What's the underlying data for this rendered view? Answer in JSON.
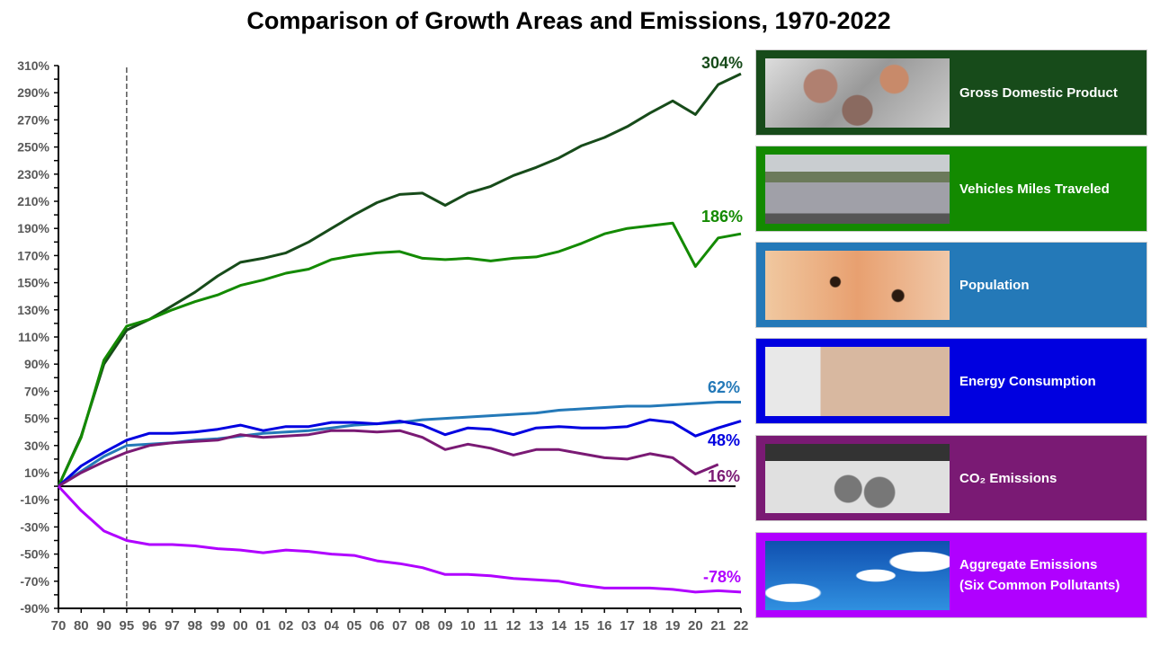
{
  "chart_data": {
    "type": "line",
    "title": "Comparison of Growth Areas and Emissions, 1970-2022",
    "categories": [
      "70",
      "80",
      "90",
      "95",
      "96",
      "97",
      "98",
      "99",
      "00",
      "01",
      "02",
      "03",
      "04",
      "05",
      "06",
      "07",
      "08",
      "09",
      "10",
      "11",
      "12",
      "13",
      "14",
      "15",
      "16",
      "17",
      "18",
      "19",
      "20",
      "21",
      "22"
    ],
    "ylim": [
      -90,
      310
    ],
    "yticks": [
      "310%",
      "290%",
      "270%",
      "250%",
      "230%",
      "210%",
      "190%",
      "170%",
      "150%",
      "130%",
      "110%",
      "90%",
      "70%",
      "50%",
      "30%",
      "10%",
      "-10%",
      "-30%",
      "-50%",
      "-70%",
      "-90%"
    ],
    "grid": false,
    "reference_line": "95",
    "series": [
      {
        "name": "Gross Domestic Product",
        "color": "#174b1a",
        "end_label": "304%",
        "values": [
          0,
          37,
          90,
          115,
          123,
          133,
          143,
          155,
          165,
          168,
          172,
          180,
          190,
          200,
          209,
          215,
          216,
          207,
          216,
          221,
          229,
          235,
          242,
          251,
          257,
          265,
          275,
          284,
          274,
          296,
          304
        ]
      },
      {
        "name": "Vehicles Miles Traveled",
        "color": "#138a00",
        "end_label": "186%",
        "values": [
          0,
          36,
          93,
          118,
          123,
          130,
          136,
          141,
          148,
          152,
          157,
          160,
          167,
          170,
          172,
          173,
          168,
          167,
          168,
          166,
          168,
          169,
          173,
          179,
          186,
          190,
          192,
          194,
          162,
          183,
          186
        ]
      },
      {
        "name": "Population",
        "color": "#2479b8",
        "end_label": "62%",
        "values": [
          0,
          11,
          22,
          30,
          31,
          32,
          34,
          35,
          37,
          39,
          40,
          41,
          43,
          45,
          46,
          47,
          49,
          50,
          51,
          52,
          53,
          54,
          56,
          57,
          58,
          59,
          59,
          60,
          61,
          62,
          62
        ]
      },
      {
        "name": "Energy Consumption",
        "color": "#0000e0",
        "end_label": "48%",
        "values": [
          0,
          15,
          25,
          34,
          39,
          39,
          40,
          42,
          45,
          41,
          44,
          44,
          47,
          47,
          46,
          48,
          45,
          38,
          43,
          42,
          38,
          43,
          44,
          43,
          43,
          44,
          49,
          47,
          37,
          43,
          48
        ]
      },
      {
        "name": "CO₂ Emissions",
        "color": "#7a1a74",
        "end_label": "16%",
        "values": [
          0,
          10,
          18,
          25,
          30,
          32,
          33,
          34,
          38,
          36,
          37,
          38,
          41,
          41,
          40,
          41,
          36,
          27,
          31,
          28,
          23,
          27,
          27,
          24,
          21,
          20,
          24,
          21,
          9,
          16,
          null
        ]
      },
      {
        "name": "Aggregate Emissions (Six Common Pollutants)",
        "color": "#b000ff",
        "end_label": "-78%",
        "values": [
          0,
          -18,
          -33,
          -40,
          -43,
          -43,
          -44,
          -46,
          -47,
          -49,
          -47,
          -48,
          -50,
          -51,
          -55,
          -57,
          -60,
          -65,
          -65,
          -66,
          -68,
          -69,
          -70,
          -73,
          -75,
          -75,
          -75,
          -76,
          -78,
          -77,
          -78
        ]
      }
    ]
  },
  "legend_panels": [
    {
      "line1": "Gross Domestic Product",
      "line2": "",
      "color": "#174b1a",
      "icon": "coins-photo"
    },
    {
      "line1": "Vehicles Miles Traveled",
      "line2": "",
      "color": "#138a00",
      "icon": "traffic-photo"
    },
    {
      "line1": "Population",
      "line2": "",
      "color": "#2479b8",
      "icon": "baby-photo"
    },
    {
      "line1": "Energy Consumption",
      "line2": "",
      "color": "#0000e0",
      "icon": "plug-photo"
    },
    {
      "line1": "CO₂ Emissions",
      "line2": "",
      "color": "#7a1a74",
      "icon": "exhaust-photo"
    },
    {
      "line1": "Aggregate Emissions",
      "line2": "(Six Common Pollutants)",
      "color": "#b000ff",
      "icon": "smokestack-photo"
    }
  ]
}
